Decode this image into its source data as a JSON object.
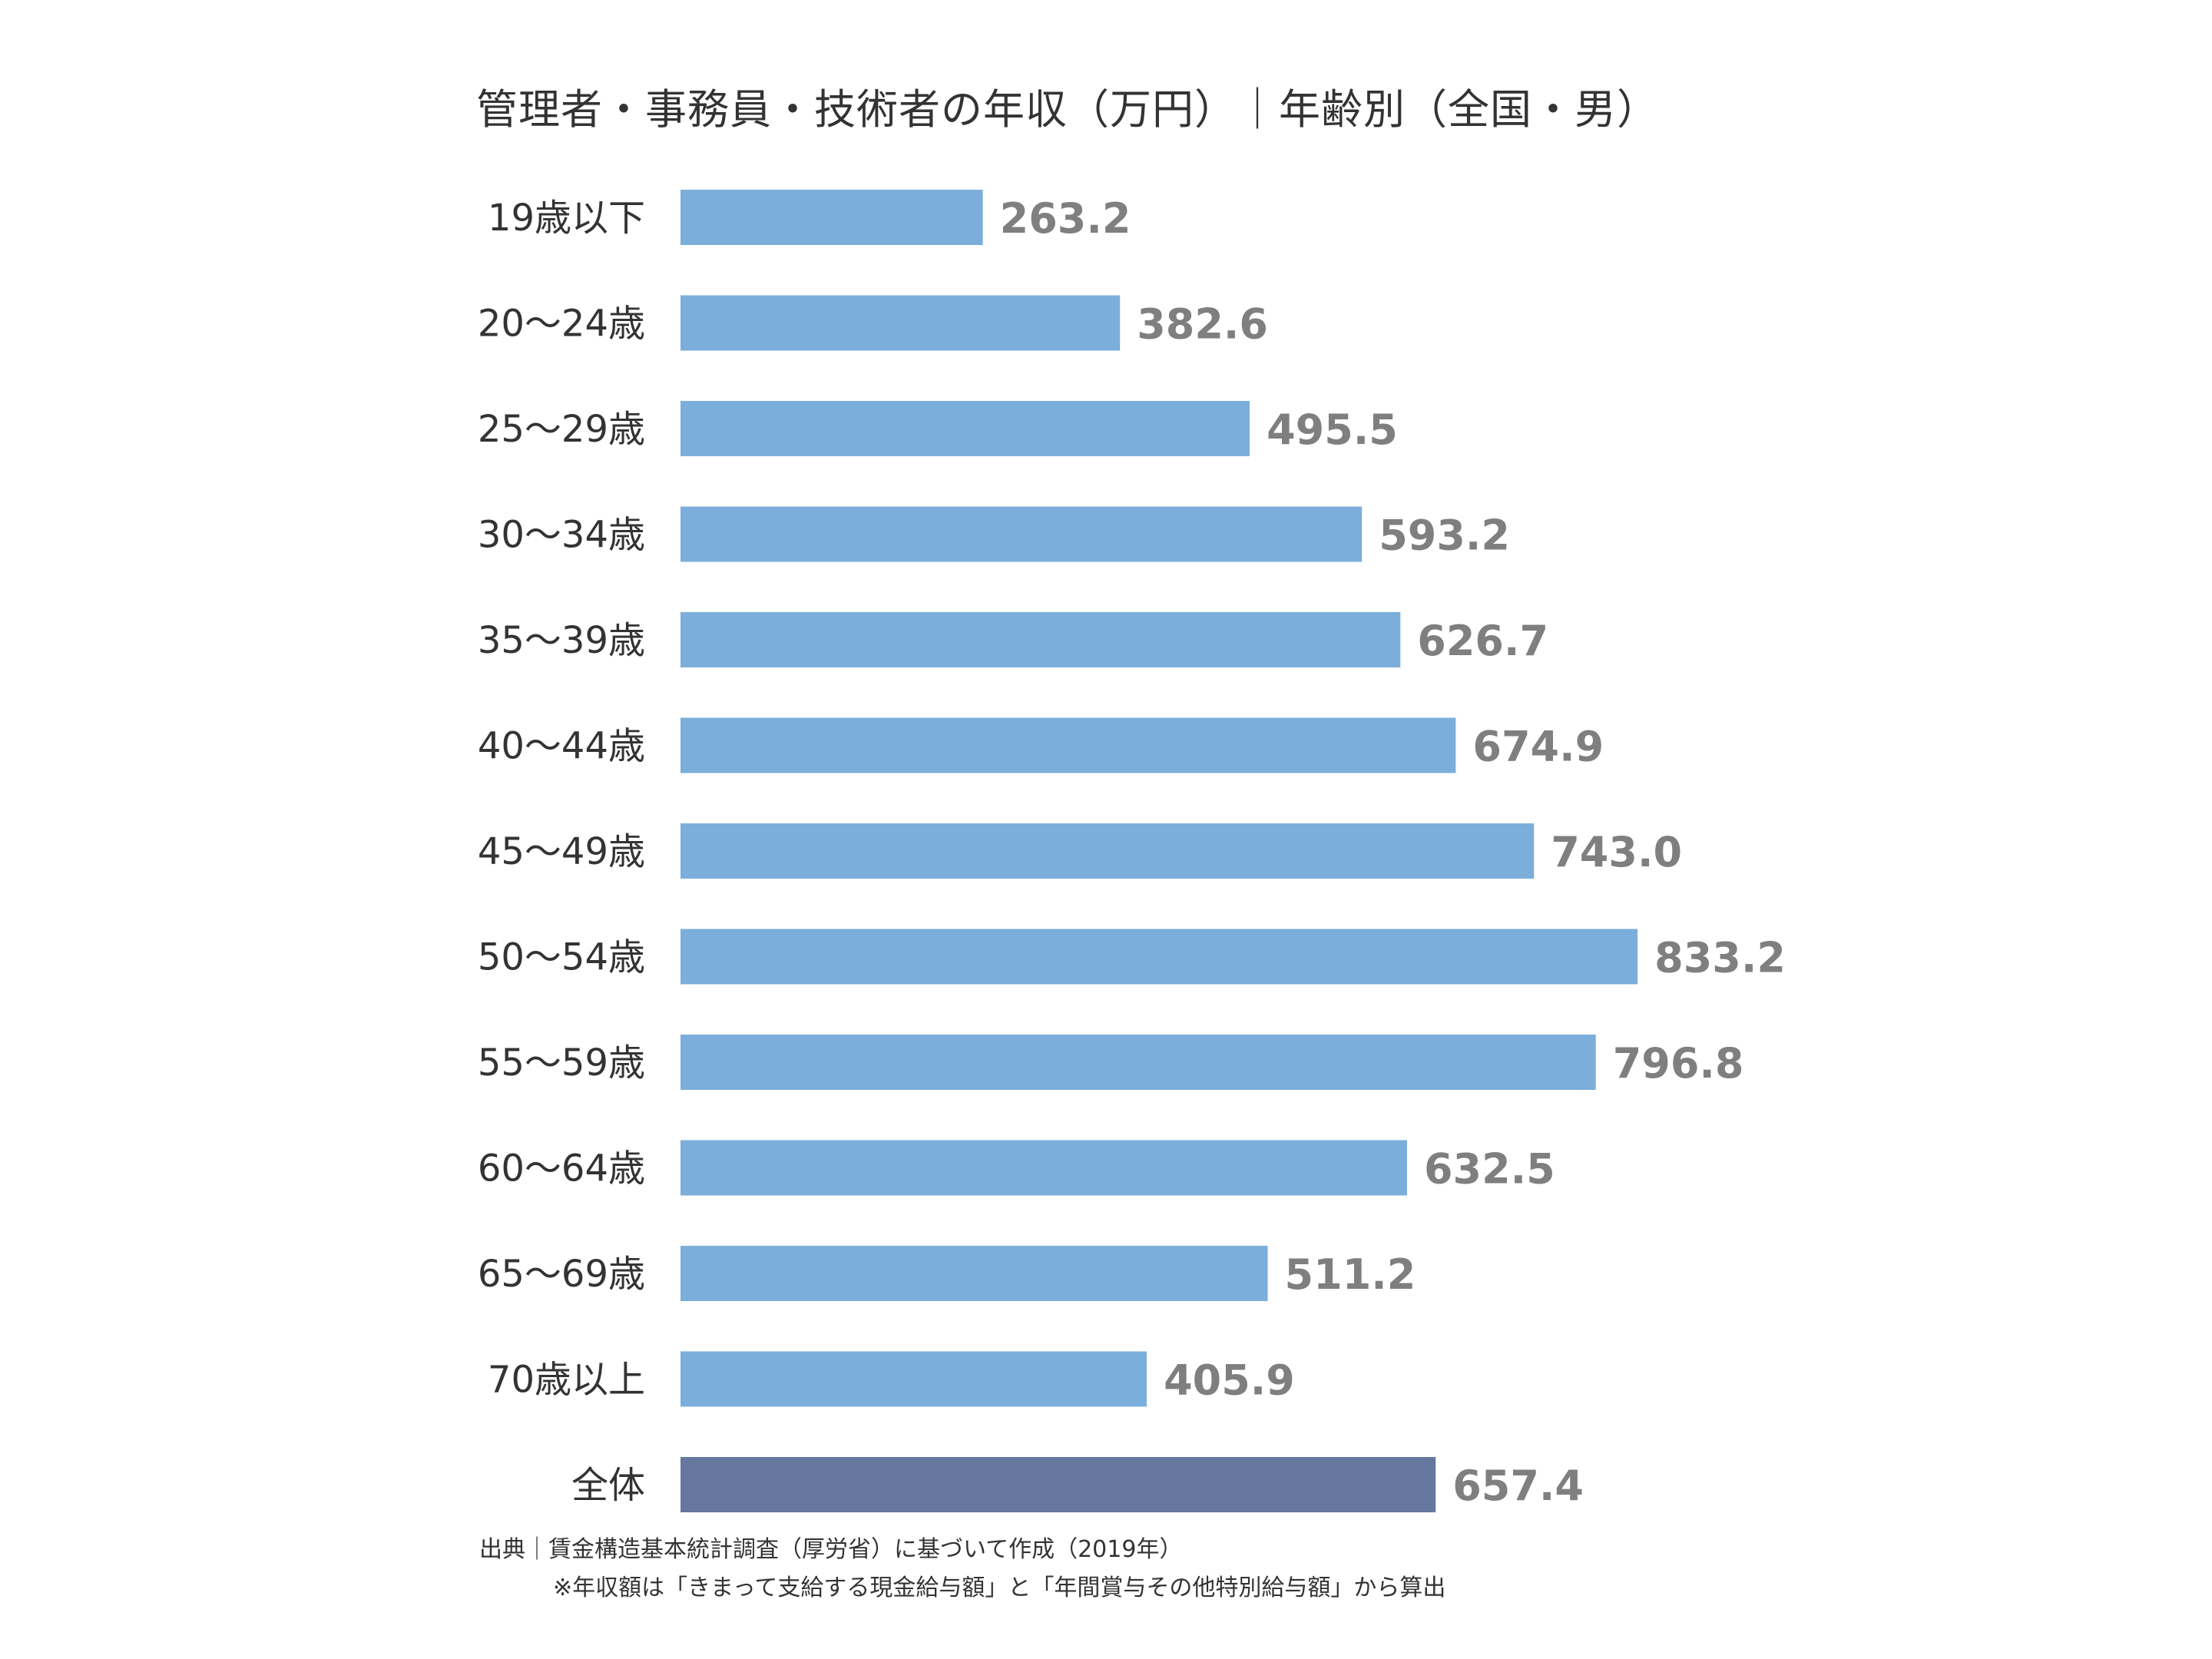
{
  "chart_data": {
    "type": "bar",
    "orientation": "horizontal",
    "title": "管理者・事務員・技術者の年収（万円）｜年齢別（全国・男）",
    "categories": [
      "19歳以下",
      "20～24歳",
      "25～29歳",
      "30～34歳",
      "35～39歳",
      "40～44歳",
      "45～49歳",
      "50～54歳",
      "55～59歳",
      "60～64歳",
      "65～69歳",
      "70歳以上",
      "全体"
    ],
    "value_labels": [
      "263.2",
      "382.6",
      "495.5",
      "593.2",
      "626.7",
      "674.9",
      "743.0",
      "833.2",
      "796.8",
      "632.5",
      "511.2",
      "405.9",
      "657.4"
    ],
    "series": [
      {
        "values": [
          263.2,
          382.6,
          495.5,
          593.2,
          626.7,
          674.9,
          743.0,
          833.2,
          796.8,
          632.5,
          511.2,
          405.9,
          657.4
        ]
      }
    ],
    "highlight_category": "全体",
    "grid": false,
    "legend": "none",
    "colors": {
      "bar": "#7caedc",
      "highlight_bar": "#6677a0",
      "value_label": "#7f7f7f",
      "category_label": "#333333",
      "title": "#333333"
    },
    "source": "出典｜賃金構造基本統計調査（厚労省）に基づいて作成（2019年）",
    "note": "※年収額は「きまって支給する現金給与額」と「年間賞与その他特別給与額」から算出"
  }
}
